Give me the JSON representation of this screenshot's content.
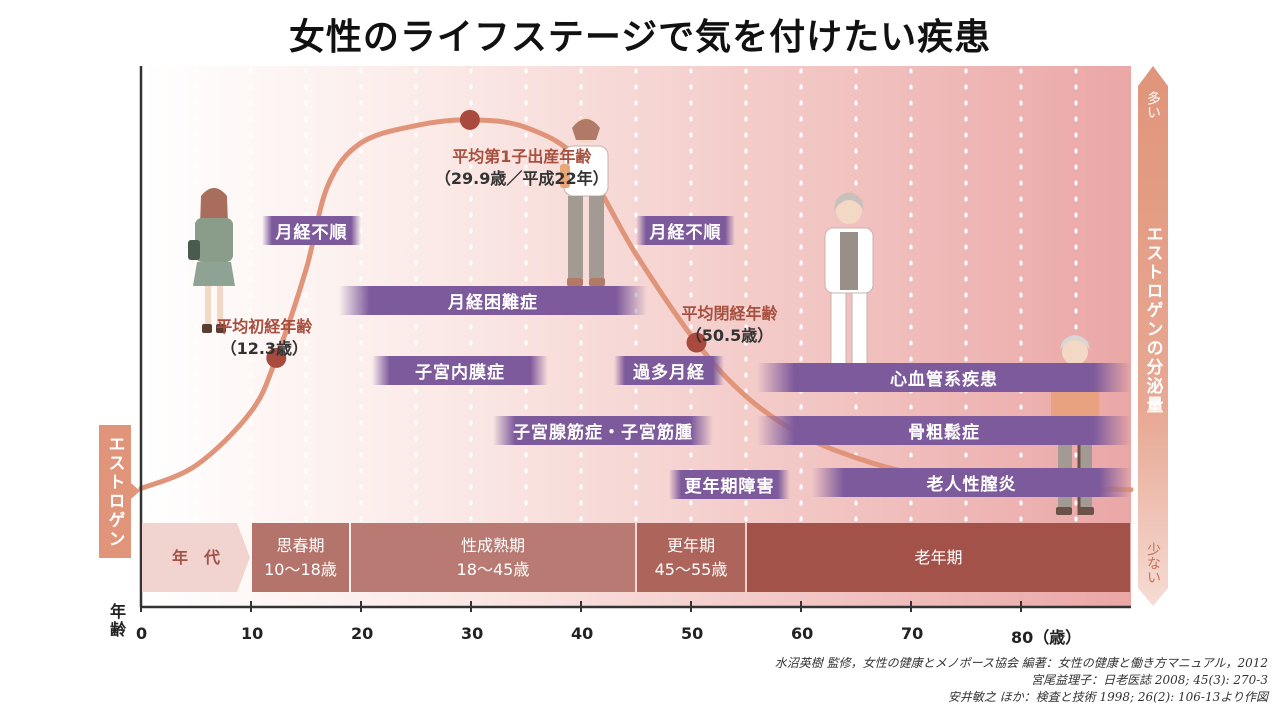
{
  "title": "女性のライフステージで気を付けたい疾患",
  "chart_data": {
    "type": "line",
    "title": "女性のライフステージで気を付けたい疾患",
    "xlabel": "年齢",
    "ylabel": "エストロゲン",
    "y2label": "エストロゲンの分泌量",
    "y2_top": "多い",
    "y2_bottom": "少ない",
    "xlim": [
      0,
      90
    ],
    "xticks": [
      {
        "v": 0,
        "label": "0"
      },
      {
        "v": 10,
        "label": "10"
      },
      {
        "v": 20,
        "label": "20"
      },
      {
        "v": 30,
        "label": "30"
      },
      {
        "v": 40,
        "label": "40"
      },
      {
        "v": 50,
        "label": "50"
      },
      {
        "v": 60,
        "label": "60"
      },
      {
        "v": 70,
        "label": "70"
      },
      {
        "v": 80,
        "label": "80（歳）"
      }
    ],
    "ylim": [
      0,
      100
    ],
    "series": [
      {
        "x": [
          0,
          5,
          10,
          12.3,
          15,
          17,
          20,
          25,
          29.9,
          35,
          40,
          45,
          50.5,
          55,
          60,
          65,
          70,
          75,
          80,
          85,
          90
        ],
        "values": [
          3,
          9,
          23,
          37,
          60,
          82,
          93,
          97.5,
          99,
          97,
          88,
          64,
          41,
          27,
          17,
          11,
          7,
          5,
          3.5,
          3,
          2.7
        ]
      }
    ],
    "annotations": [
      {
        "name": "menarche",
        "label": "平均初経年齢",
        "value": "（12.3歳）",
        "x": 12.3
      },
      {
        "name": "first-birth",
        "label": "平均第1子出産年齢",
        "value": "（29.9歳／平成22年）",
        "x": 29.9
      },
      {
        "name": "menopause",
        "label": "平均閉経年齢",
        "value": "（50.5歳）",
        "x": 50.5
      }
    ],
    "stages": [
      {
        "label": "年　代",
        "range": "",
        "x0": 0,
        "x1": 10
      },
      {
        "label": "思春期",
        "range": "10〜18歳",
        "x0": 10,
        "x1": 19
      },
      {
        "label": "性成熟期",
        "range": "18〜45歳",
        "x0": 19,
        "x1": 45
      },
      {
        "label": "更年期",
        "range": "45〜55歳",
        "x0": 45,
        "x1": 55
      },
      {
        "label": "老年期",
        "range": "",
        "x0": 55,
        "x1": 90
      }
    ],
    "diseases": [
      {
        "label": "月経不順",
        "x0": 11,
        "x1": 20
      },
      {
        "label": "月経困難症",
        "x0": 18,
        "x1": 46
      },
      {
        "label": "子宮内膜症",
        "x0": 21,
        "x1": 37
      },
      {
        "label": "子宮腺筋症・子宮筋腫",
        "x0": 32,
        "x1": 52
      },
      {
        "label": "月経不順",
        "x0": 45,
        "x1": 54
      },
      {
        "label": "過多月経",
        "x0": 43,
        "x1": 53
      },
      {
        "label": "心血管系疾患",
        "x0": 56,
        "x1": 90
      },
      {
        "label": "骨粗鬆症",
        "x0": 56,
        "x1": 90
      },
      {
        "label": "更年期障害",
        "x0": 48,
        "x1": 59
      },
      {
        "label": "老人性膣炎",
        "x0": 61,
        "x1": 90
      }
    ]
  },
  "credits": [
    "水沼英樹 監修，女性の健康とメノポース協会 編著：女性の健康と働き方マニュアル，2012",
    "宮尾益理子：日老医誌 2008; 45(3): 270-3",
    "安井敏之 ほか：検査と技術 1998; 26(2): 106-13より作図"
  ],
  "colors": {
    "curve": "#e0957a",
    "marker": "#a84a3e",
    "annotation_label": "#a8503f",
    "disease_bar": "#7d5a9c",
    "stage_dark": "#a3524a",
    "stage_mid": "#b4746c",
    "stage_light": "#f1d4cf",
    "axis_tab": "#e0957a"
  }
}
